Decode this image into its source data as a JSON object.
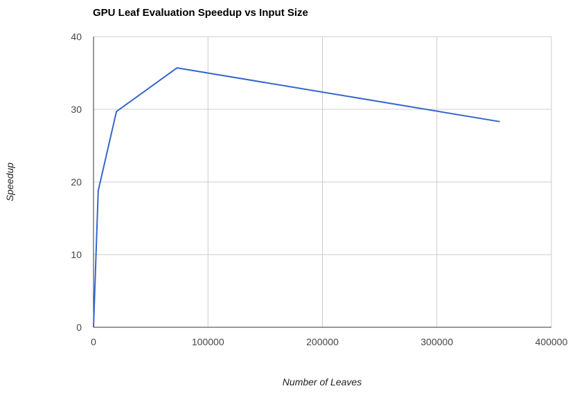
{
  "chart_data": {
    "type": "line",
    "title": "GPU Leaf Evaluation Speedup vs Input Size",
    "xlabel": "Number of Leaves",
    "ylabel": "Speedup",
    "xlim": [
      0,
      400000
    ],
    "ylim": [
      0,
      40
    ],
    "x_ticks": [
      "0",
      "100000",
      "200000",
      "300000",
      "400000"
    ],
    "y_ticks": [
      "0",
      "10",
      "20",
      "30",
      "40"
    ],
    "grid": true,
    "legend": "none",
    "series": [
      {
        "color": "#3366cc",
        "x": [
          0,
          4096,
          20000,
          73000,
          355000
        ],
        "y": [
          0,
          18.8,
          29.7,
          35.7,
          28.3
        ]
      }
    ]
  }
}
